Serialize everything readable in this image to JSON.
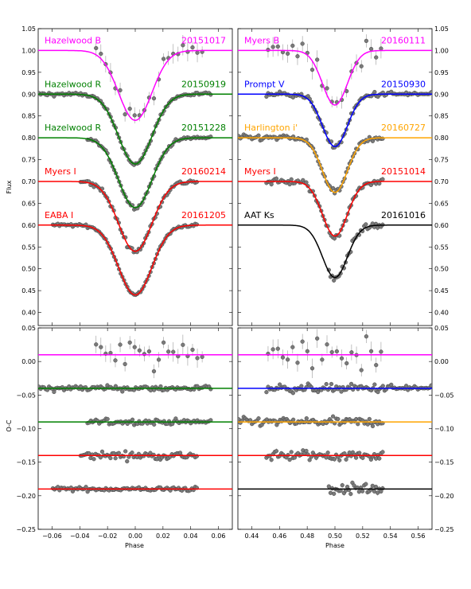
{
  "chart_data": {
    "type": "scatter",
    "description_axes": {
      "flux_ylabel": "Flux",
      "oc_ylabel": "O-C",
      "xlabel": "Phase"
    },
    "flux_ylim": [
      0.37,
      1.05
    ],
    "oc_ylim": [
      -0.25,
      0.05
    ],
    "flux_yticks": [
      "1.05",
      "1.00",
      "0.95",
      "0.90",
      "0.85",
      "0.80",
      "0.75",
      "0.70",
      "0.65",
      "0.60",
      "0.55",
      "0.50",
      "0.45",
      "0.40"
    ],
    "oc_yticks": [
      "0.05",
      "0.00",
      "−0.05",
      "−0.10",
      "−0.15",
      "−0.20",
      "−0.25"
    ],
    "left_xlim": [
      -0.07,
      0.07
    ],
    "left_xticks": [
      "−0.06",
      "−0.04",
      "−0.02",
      "0.00",
      "0.02",
      "0.04",
      "0.06"
    ],
    "right_xlim": [
      0.43,
      0.57
    ],
    "right_xticks": [
      "0.44",
      "0.46",
      "0.48",
      "0.50",
      "0.52",
      "0.54",
      "0.56"
    ],
    "left_series": [
      {
        "name": "Hazelwood B",
        "date": "20151017",
        "color": "#ff00ff",
        "base": 1.0,
        "depth": 0.16,
        "width": 0.012,
        "oc": 0.01,
        "xrange": [
          -0.03,
          0.05
        ],
        "scatter": 0.03
      },
      {
        "name": "Hazelwood R",
        "date": "20150919",
        "color": "#008000",
        "base": 0.9,
        "depth": 0.16,
        "width": 0.012,
        "oc": -0.04,
        "xrange": [
          -0.07,
          0.055
        ],
        "scatter": 0.004
      },
      {
        "name": "Hazelwood R",
        "date": "20151228",
        "color": "#008000",
        "base": 0.8,
        "depth": 0.16,
        "width": 0.012,
        "oc": -0.09,
        "xrange": [
          -0.035,
          0.055
        ],
        "scatter": 0.004
      },
      {
        "name": "Myers I",
        "date": "20160214",
        "color": "#ff0000",
        "base": 0.7,
        "depth": 0.16,
        "width": 0.012,
        "oc": -0.14,
        "xrange": [
          -0.04,
          0.045
        ],
        "scatter": 0.006
      },
      {
        "name": "EABA I",
        "date": "20161205",
        "color": "#ff0000",
        "base": 0.6,
        "depth": 0.16,
        "width": 0.012,
        "oc": -0.19,
        "xrange": [
          -0.06,
          0.045
        ],
        "scatter": 0.003
      }
    ],
    "right_series": [
      {
        "name": "Myers B",
        "date": "20160111",
        "color": "#ff00ff",
        "base": 1.0,
        "depth": 0.125,
        "width": 0.009,
        "oc": 0.01,
        "xrange": [
          0.45,
          0.535
        ],
        "scatter": 0.03
      },
      {
        "name": "Prompt V",
        "date": "20150930",
        "color": "#0000ff",
        "base": 0.9,
        "depth": 0.12,
        "width": 0.009,
        "oc": -0.04,
        "xrange": [
          0.45,
          0.57
        ],
        "scatter": 0.006
      },
      {
        "name": "Harlington i'",
        "date": "20160727",
        "color": "#ffa500",
        "base": 0.8,
        "depth": 0.125,
        "width": 0.009,
        "oc": -0.09,
        "xrange": [
          0.43,
          0.535
        ],
        "scatter": 0.006
      },
      {
        "name": "Myers I",
        "date": "20151014",
        "color": "#ff0000",
        "base": 0.7,
        "depth": 0.125,
        "width": 0.009,
        "oc": -0.14,
        "xrange": [
          0.45,
          0.535
        ],
        "scatter": 0.008
      },
      {
        "name": "AAT Ks",
        "date": "20161016",
        "color": "#000000",
        "base": 0.6,
        "depth": 0.12,
        "width": 0.009,
        "oc": -0.19,
        "xrange": [
          0.495,
          0.535
        ],
        "scatter": 0.008
      }
    ]
  }
}
